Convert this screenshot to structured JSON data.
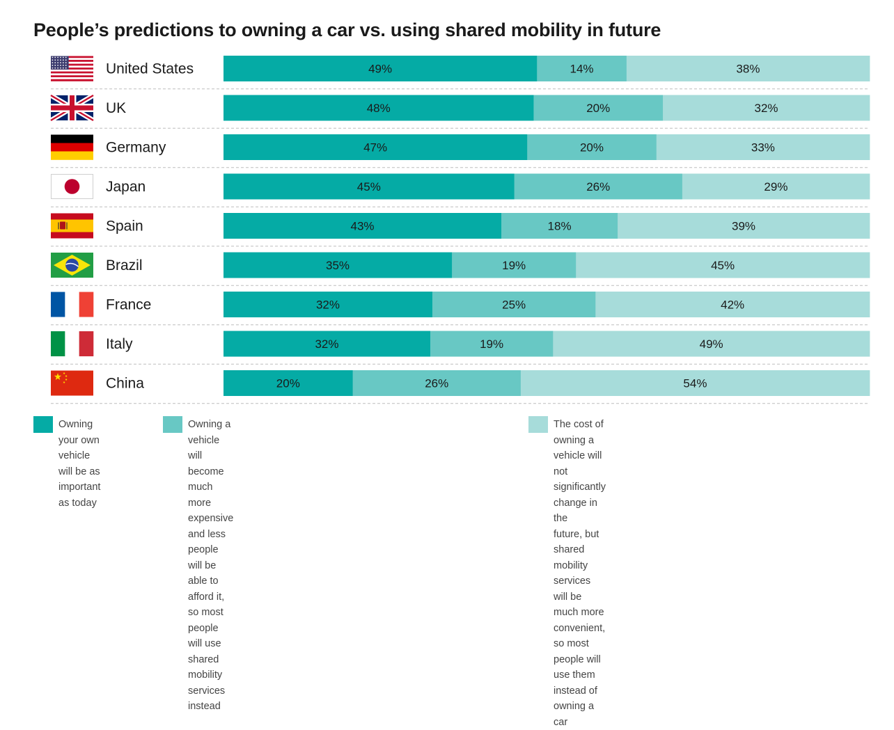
{
  "title": "People’s predictions to owning a car vs. using shared mobility in future",
  "colors": {
    "own": "#05aba5",
    "afford": "#68c8c4",
    "convenient": "#a7dcda",
    "divider": "#bdbdbd"
  },
  "legend": [
    {
      "label": "Owning your own vehicle will be as important as today",
      "lines": [
        "Owning your own",
        "vehicle will be as",
        "important as today"
      ],
      "color": "#05aba5"
    },
    {
      "label": "Owning a vehicle will become much more expensive and less people will be able to afford it, so most people will use shared mobility services instead",
      "lines": [
        "Owning a vehicle will become much more expensive and less people",
        "will be able to afford it, so most people will use shared mobility",
        "services instead"
      ],
      "color": "#68c8c4"
    },
    {
      "label": "The cost of owning a vehicle will not significantly change in the future, but shared mobility services will be much more convenient, so most people will use them instead of owning a car",
      "lines": [
        "The cost of owning a vehicle will not significantly change in the",
        "future, but shared mobility services will be much more convenient,",
        "so most people will use them instead of owning a car"
      ],
      "color": "#a7dcda"
    }
  ],
  "chart_data": {
    "type": "bar",
    "orientation": "horizontal",
    "stacked": true,
    "title": "People’s predictions to owning a car vs. using shared mobility in future",
    "categories": [
      "United States",
      "UK",
      "Germany",
      "Japan",
      "Spain",
      "Brazil",
      "France",
      "Italy",
      "China"
    ],
    "flag_icons": [
      "us-flag-icon",
      "uk-flag-icon",
      "germany-flag-icon",
      "japan-flag-icon",
      "spain-flag-icon",
      "brazil-flag-icon",
      "france-flag-icon",
      "italy-flag-icon",
      "china-flag-icon"
    ],
    "series": [
      {
        "name": "Owning your own vehicle will be as important as today",
        "color": "#05aba5",
        "values": [
          49,
          48,
          47,
          45,
          43,
          35,
          32,
          32,
          20
        ]
      },
      {
        "name": "Owning a vehicle will become much more expensive and less people will be able to afford it, so most people will use shared mobility services instead",
        "color": "#68c8c4",
        "values": [
          14,
          20,
          20,
          26,
          18,
          19,
          25,
          19,
          26
        ]
      },
      {
        "name": "The cost of owning a vehicle will not significantly change in the future, but shared mobility services will be much more convenient, so most people will use them instead of owning a car",
        "color": "#a7dcda",
        "values": [
          38,
          32,
          33,
          29,
          39,
          45,
          42,
          49,
          54
        ]
      }
    ],
    "value_suffix": "%",
    "legend_position": "bottom"
  }
}
